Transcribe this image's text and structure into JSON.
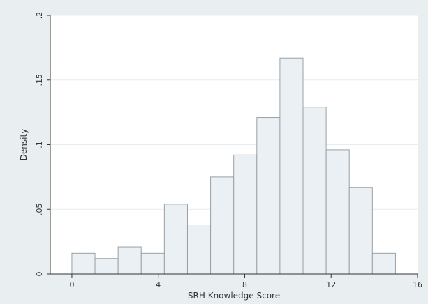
{
  "chart_data": {
    "type": "bar",
    "title": "",
    "xlabel": "SRH Knowledge Score",
    "ylabel": "Density",
    "xlim": [
      -1,
      16
    ],
    "ylim": [
      0,
      0.2
    ],
    "x_ticks": [
      0,
      4,
      8,
      12,
      16
    ],
    "x_tick_labels": [
      "0",
      "4",
      "8",
      "12",
      "16"
    ],
    "y_ticks": [
      0,
      0.05,
      0.1,
      0.15,
      0.2
    ],
    "y_tick_labels": [
      "0",
      ".05",
      ".1",
      ".15",
      ".2"
    ],
    "grid": true,
    "bin_width": 1.07,
    "bin_starts": [
      0,
      1.07,
      2.14,
      3.21,
      4.28,
      5.35,
      6.42,
      7.49,
      8.56,
      9.63,
      10.7,
      11.77,
      12.84,
      13.91
    ],
    "values": [
      0.016,
      0.012,
      0.021,
      0.016,
      0.054,
      0.038,
      0.075,
      0.092,
      0.121,
      0.167,
      0.129,
      0.096,
      0.067,
      0.016
    ]
  },
  "colors": {
    "outer_background": "#e9eef1",
    "plot_background": "#ffffff",
    "bar_fill": "#eaf0f3",
    "bar_stroke": "#9aa1a5",
    "grid": "#e6ecef",
    "axis": "#333333"
  }
}
